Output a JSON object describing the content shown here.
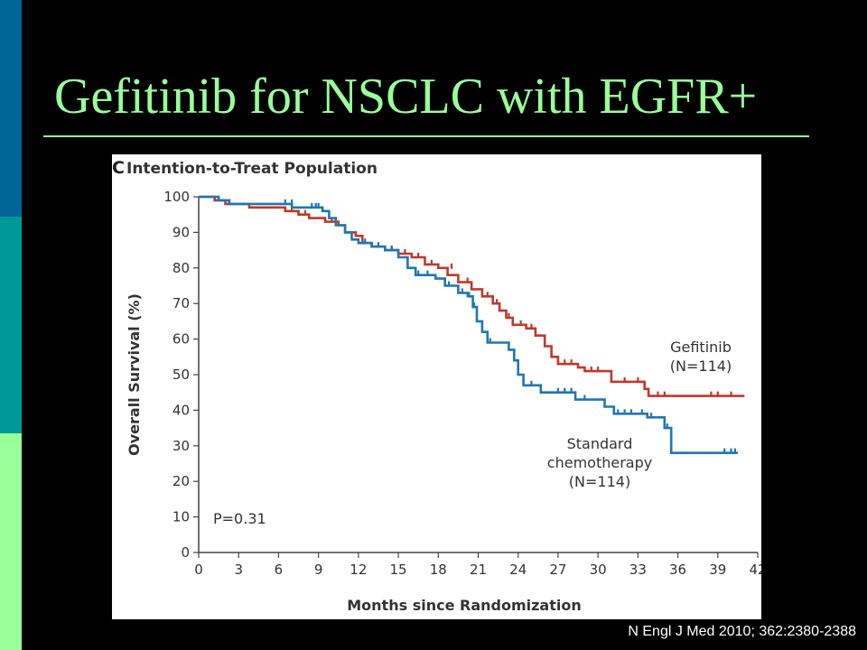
{
  "slide": {
    "title": "Gefitinib for NSCLC with EGFR+",
    "citation": "N Engl J Med 2010; 362:2380-2388",
    "colors": {
      "background": "#000000",
      "title": "#99ff99",
      "rule": "#99ff99",
      "citation": "#ffffff",
      "side_bars": [
        "#006699",
        "#009999",
        "#99ff99"
      ]
    }
  },
  "chart_data": {
    "type": "line",
    "panel_letter": "C",
    "title": "Intention-to-Treat Population",
    "xlabel": "Months since Randomization",
    "ylabel": "Overall Survival (%)",
    "xlim": [
      0,
      42
    ],
    "ylim": [
      0,
      100
    ],
    "x_ticks": [
      0,
      3,
      6,
      9,
      12,
      15,
      18,
      21,
      24,
      27,
      30,
      33,
      36,
      39,
      42
    ],
    "y_ticks": [
      0,
      10,
      20,
      30,
      40,
      50,
      60,
      70,
      80,
      90,
      100
    ],
    "grid": false,
    "annotation": "P=0.31",
    "step": true,
    "series": [
      {
        "name": "Gefitinib (N=114)",
        "label_lines": [
          "Gefitinib",
          "(N=114)"
        ],
        "color": "#c0392b",
        "points": [
          [
            0,
            100
          ],
          [
            1.2,
            99
          ],
          [
            2,
            98
          ],
          [
            3.8,
            97
          ],
          [
            6.5,
            96
          ],
          [
            7.5,
            95
          ],
          [
            8.3,
            94
          ],
          [
            9.5,
            93
          ],
          [
            10.5,
            92
          ],
          [
            11,
            90
          ],
          [
            11.8,
            89
          ],
          [
            12.3,
            87
          ],
          [
            13,
            86
          ],
          [
            14,
            85
          ],
          [
            15,
            84
          ],
          [
            16,
            83
          ],
          [
            17,
            81
          ],
          [
            18,
            80
          ],
          [
            18.7,
            78
          ],
          [
            19.5,
            76
          ],
          [
            20.5,
            74
          ],
          [
            21.3,
            72
          ],
          [
            22.1,
            70
          ],
          [
            22.6,
            68
          ],
          [
            23.1,
            66
          ],
          [
            23.6,
            64
          ],
          [
            24.6,
            63
          ],
          [
            25.3,
            61
          ],
          [
            26,
            58
          ],
          [
            26.5,
            55
          ],
          [
            27,
            53
          ],
          [
            28.5,
            52
          ],
          [
            29,
            51
          ],
          [
            31,
            48
          ],
          [
            33.5,
            46
          ],
          [
            33.8,
            44
          ],
          [
            41,
            44
          ]
        ],
        "censored": [
          [
            6.5,
            96
          ],
          [
            7,
            96
          ],
          [
            7.5,
            95
          ],
          [
            8,
            95
          ],
          [
            10,
            93
          ],
          [
            14.5,
            85
          ],
          [
            15.5,
            84
          ],
          [
            16.5,
            83
          ],
          [
            17.5,
            81
          ],
          [
            19,
            80
          ],
          [
            20.2,
            76
          ],
          [
            21.7,
            72
          ],
          [
            22.4,
            70
          ],
          [
            23.3,
            66
          ],
          [
            24.2,
            64
          ],
          [
            25,
            63
          ],
          [
            27.5,
            53
          ],
          [
            28,
            53
          ],
          [
            29.5,
            51
          ],
          [
            30,
            51
          ],
          [
            32,
            48
          ],
          [
            33,
            48
          ],
          [
            34.5,
            44
          ],
          [
            35,
            44
          ],
          [
            38.5,
            44
          ],
          [
            39,
            44
          ],
          [
            40,
            44
          ]
        ]
      },
      {
        "name": "Standard chemotherapy (N=114)",
        "label_lines": [
          "Standard",
          "chemotherapy",
          "(N=114)"
        ],
        "color": "#1f77b4",
        "points": [
          [
            0,
            100
          ],
          [
            1.5,
            99
          ],
          [
            2.3,
            98
          ],
          [
            6,
            98
          ],
          [
            7,
            97
          ],
          [
            8.5,
            97
          ],
          [
            9.3,
            96
          ],
          [
            9.8,
            94
          ],
          [
            10.3,
            92
          ],
          [
            11,
            90
          ],
          [
            11.5,
            88
          ],
          [
            12,
            87
          ],
          [
            13,
            86
          ],
          [
            14,
            85
          ],
          [
            15,
            83
          ],
          [
            15.7,
            80
          ],
          [
            16.3,
            78
          ],
          [
            17.8,
            77
          ],
          [
            18.5,
            75
          ],
          [
            19.5,
            73
          ],
          [
            20.3,
            72
          ],
          [
            20.6,
            69
          ],
          [
            20.9,
            65
          ],
          [
            21.3,
            62
          ],
          [
            21.7,
            59
          ],
          [
            23.3,
            57
          ],
          [
            23.7,
            54
          ],
          [
            24,
            50
          ],
          [
            24.4,
            47
          ],
          [
            25.7,
            45
          ],
          [
            28.3,
            43
          ],
          [
            30.5,
            41
          ],
          [
            31.2,
            39
          ],
          [
            33.7,
            38
          ],
          [
            35,
            35
          ],
          [
            35.5,
            28
          ],
          [
            40.5,
            28
          ]
        ],
        "censored": [
          [
            6.5,
            98
          ],
          [
            7,
            98
          ],
          [
            8.5,
            97
          ],
          [
            8.8,
            97
          ],
          [
            9,
            97
          ],
          [
            12.5,
            87
          ],
          [
            13.5,
            86
          ],
          [
            14.5,
            85
          ],
          [
            16.5,
            78
          ],
          [
            17.2,
            78
          ],
          [
            18.8,
            75
          ],
          [
            19.8,
            73
          ],
          [
            20.2,
            72
          ],
          [
            20.7,
            69
          ],
          [
            21.9,
            59
          ],
          [
            25,
            47
          ],
          [
            27,
            45
          ],
          [
            27.5,
            45
          ],
          [
            28,
            45
          ],
          [
            29,
            43
          ],
          [
            31.5,
            39
          ],
          [
            32,
            39
          ],
          [
            32.5,
            39
          ],
          [
            33.3,
            39
          ],
          [
            34,
            38
          ],
          [
            35.2,
            35
          ],
          [
            39.5,
            28
          ],
          [
            40,
            28
          ],
          [
            40.3,
            28
          ]
        ]
      }
    ]
  }
}
